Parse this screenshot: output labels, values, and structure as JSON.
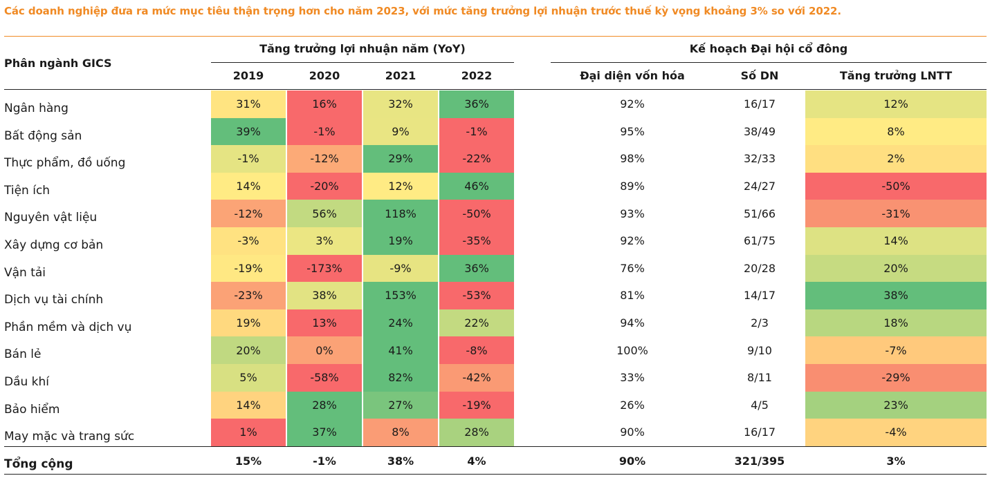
{
  "title": "Các doanh nghiệp đưa ra mức mục tiêu thận trọng hơn cho năm 2023, với mức tăng trưởng lợi nhuận trước thuế kỳ vọng khoảng 3% so với 2022.",
  "colors": {
    "title": "#F08A24"
  },
  "header": {
    "row_label": "Phân ngành GICS",
    "group_growth": "Tăng trưởng lợi nhuận năm (YoY)",
    "group_plan": "Kế hoạch Đại hội cổ đông",
    "columns": [
      "2019",
      "2020",
      "2021",
      "2022",
      "Đại diện vốn hóa",
      "Số DN",
      "Tăng trưởng LNTT"
    ]
  },
  "rows": [
    {
      "sector": "Ngân hàng",
      "y2019": "31%",
      "y2020": "16%",
      "y2021": "32%",
      "y2022": "36%",
      "market_cap": "92%",
      "count": "16/17",
      "plan_growth": "12%",
      "colors": {
        "y2019": "#FFE481",
        "y2020": "#F8696B",
        "y2021": "#E8E583",
        "y2022": "#63BE7B",
        "plan_growth": "#E5E483"
      }
    },
    {
      "sector": "Bất động sản",
      "y2019": "39%",
      "y2020": "-1%",
      "y2021": "9%",
      "y2022": "-1%",
      "market_cap": "95%",
      "count": "38/49",
      "plan_growth": "8%",
      "colors": {
        "y2019": "#63BE7B",
        "y2020": "#F8696B",
        "y2021": "#E9E583",
        "y2022": "#F8696B",
        "plan_growth": "#FFEB84"
      }
    },
    {
      "sector": "Thực phẩm, đồ uống",
      "y2019": "-1%",
      "y2020": "-12%",
      "y2021": "29%",
      "y2022": "-22%",
      "market_cap": "98%",
      "count": "32/33",
      "plan_growth": "2%",
      "colors": {
        "y2019": "#E5E483",
        "y2020": "#FCAA77",
        "y2021": "#63BE7B",
        "y2022": "#F8696B",
        "plan_growth": "#FFDF81"
      }
    },
    {
      "sector": "Tiện ích",
      "y2019": "14%",
      "y2020": "-20%",
      "y2021": "12%",
      "y2022": "46%",
      "market_cap": "89%",
      "count": "24/27",
      "plan_growth": "-50%",
      "colors": {
        "y2019": "#FFEB84",
        "y2020": "#F8696B",
        "y2021": "#FFEB84",
        "y2022": "#63BE7B",
        "plan_growth": "#F8696B"
      }
    },
    {
      "sector": "Nguyên vật liệu",
      "y2019": "-12%",
      "y2020": "56%",
      "y2021": "118%",
      "y2022": "-50%",
      "market_cap": "93%",
      "count": "51/66",
      "plan_growth": "-31%",
      "colors": {
        "y2019": "#FBA476",
        "y2020": "#C2DA81",
        "y2021": "#63BE7B",
        "y2022": "#F8696B",
        "plan_growth": "#F99272"
      }
    },
    {
      "sector": "Xây dựng cơ bản",
      "y2019": "-3%",
      "y2020": "3%",
      "y2021": "19%",
      "y2022": "-35%",
      "market_cap": "92%",
      "count": "61/75",
      "plan_growth": "14%",
      "colors": {
        "y2019": "#FFE281",
        "y2020": "#EBE683",
        "y2021": "#63BE7B",
        "y2022": "#F8696B",
        "plan_growth": "#DDE283"
      }
    },
    {
      "sector": "Vận tải",
      "y2019": "-19%",
      "y2020": "-173%",
      "y2021": "-9%",
      "y2022": "36%",
      "market_cap": "76%",
      "count": "20/28",
      "plan_growth": "20%",
      "colors": {
        "y2019": "#FFE883",
        "y2020": "#F8696B",
        "y2021": "#E7E482",
        "y2022": "#63BE7B",
        "plan_growth": "#C6DB81"
      }
    },
    {
      "sector": "Dịch vụ tài chính",
      "y2019": "-23%",
      "y2020": "38%",
      "y2021": "153%",
      "y2022": "-53%",
      "market_cap": "81%",
      "count": "14/17",
      "plan_growth": "38%",
      "colors": {
        "y2019": "#FBA276",
        "y2020": "#E2E383",
        "y2021": "#63BE7B",
        "y2022": "#F8696B",
        "plan_growth": "#63BE7B"
      }
    },
    {
      "sector": "Phần mềm và dịch vụ",
      "y2019": "19%",
      "y2020": "13%",
      "y2021": "24%",
      "y2022": "22%",
      "market_cap": "94%",
      "count": "2/3",
      "plan_growth": "18%",
      "colors": {
        "y2019": "#FFD97F",
        "y2020": "#F8696B",
        "y2021": "#63BE7B",
        "y2022": "#C3DA81",
        "plan_growth": "#B8D780"
      }
    },
    {
      "sector": "Bán lẻ",
      "y2019": "20%",
      "y2020": "0%",
      "y2021": "41%",
      "y2022": "-8%",
      "market_cap": "100%",
      "count": "9/10",
      "plan_growth": "-7%",
      "colors": {
        "y2019": "#C0D981",
        "y2020": "#FBA276",
        "y2021": "#63BE7B",
        "y2022": "#F8696B",
        "plan_growth": "#FFC97C"
      }
    },
    {
      "sector": "Dầu khí",
      "y2019": "5%",
      "y2020": "-58%",
      "y2021": "82%",
      "y2022": "-42%",
      "market_cap": "33%",
      "count": "8/11",
      "plan_growth": "-29%",
      "colors": {
        "y2019": "#D8E082",
        "y2020": "#F8696B",
        "y2021": "#63BE7B",
        "y2022": "#FA9A74",
        "plan_growth": "#F98E71"
      }
    },
    {
      "sector": "Bảo hiểm",
      "y2019": "14%",
      "y2020": "28%",
      "y2021": "27%",
      "y2022": "-19%",
      "market_cap": "26%",
      "count": "4/5",
      "plan_growth": "23%",
      "colors": {
        "y2019": "#FFD37F",
        "y2020": "#63BE7B",
        "y2021": "#7AC57D",
        "y2022": "#F8696B",
        "plan_growth": "#A4D17F"
      }
    },
    {
      "sector": "May mặc và trang sức",
      "y2019": "1%",
      "y2020": "37%",
      "y2021": "8%",
      "y2022": "28%",
      "market_cap": "90%",
      "count": "16/17",
      "plan_growth": "-4%",
      "colors": {
        "y2019": "#F8696B",
        "y2020": "#63BE7B",
        "y2021": "#FA9C75",
        "y2022": "#A9D27F",
        "plan_growth": "#FFD37F"
      }
    }
  ],
  "total": {
    "sector": "Tổng cộng",
    "y2019": "15%",
    "y2020": "-1%",
    "y2021": "38%",
    "y2022": "4%",
    "market_cap": "90%",
    "count": "321/395",
    "plan_growth": "3%"
  }
}
